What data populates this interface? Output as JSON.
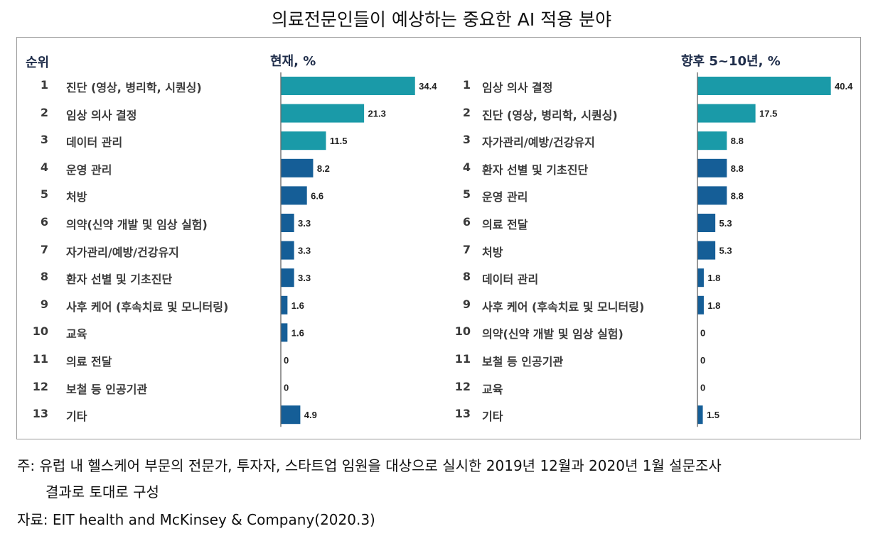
{
  "title": "의료전문인들이 예상하는 중요한 AI 적용 분야",
  "rank_header": "순위",
  "colors": {
    "top3": "#1a9aa8",
    "rest": "#155e97"
  },
  "chart_data": [
    {
      "type": "bar",
      "orientation": "horizontal",
      "title": "현재, %",
      "ranks": [
        "1",
        "2",
        "3",
        "4",
        "5",
        "6",
        "7",
        "8",
        "9",
        "10",
        "11",
        "12",
        "13"
      ],
      "categories": [
        "진단 (영상, 병리학, 시퀀싱)",
        "임상 의사 결정",
        "데이터 관리",
        "운영 관리",
        "처방",
        "의약(신약 개발 및 임상 실험)",
        "자가관리/예방/건강유지",
        "환자 선별 및 기초진단",
        "사후 케어 (후속치료 및 모니터링)",
        "교육",
        "의료 전달",
        "보철 등 인공기관",
        "기타"
      ],
      "values": [
        34.4,
        21.3,
        11.5,
        8.2,
        6.6,
        3.3,
        3.3,
        3.3,
        1.6,
        1.6,
        0,
        0,
        4.9
      ],
      "value_labels": [
        "34.4",
        "21.3",
        "11.5",
        "8.2",
        "6.6",
        "3.3",
        "3.3",
        "3.3",
        "1.6",
        "1.6",
        "0",
        "0",
        "4.9"
      ],
      "highlight_top": 3
    },
    {
      "type": "bar",
      "orientation": "horizontal",
      "title": "향후 5~10년, %",
      "ranks": [
        "1",
        "2",
        "3",
        "4",
        "5",
        "6",
        "7",
        "8",
        "9",
        "10",
        "11",
        "12",
        "13"
      ],
      "categories": [
        "임상 의사 결정",
        "진단 (영상, 병리학, 시퀀싱)",
        "자가관리/예방/건강유지",
        "환자 선별 및 기초진단",
        "운영 관리",
        "의료 전달",
        "처방",
        "데이터 관리",
        "사후 케어 (후속치료 및 모니터링)",
        "의약(신약 개발 및 임상 실험)",
        "보철 등 인공기관",
        "교육",
        "기타"
      ],
      "values": [
        40.4,
        17.5,
        8.8,
        8.8,
        8.8,
        5.3,
        5.3,
        1.8,
        1.8,
        0,
        0,
        0,
        1.5
      ],
      "value_labels": [
        "40.4",
        "17.5",
        "8.8",
        "8.8",
        "8.8",
        "5.3",
        "5.3",
        "1.8",
        "1.8",
        "0",
        "0",
        "0",
        "1.5"
      ],
      "highlight_top": 3
    }
  ],
  "notes": {
    "line1": "주: 유럽 내 헬스케어 부문의 전문가, 투자자, 스타트업 임원을 대상으로 실시한 2019년 12월과 2020년 1월 설문조사",
    "line2": "결과로 토대로 구성",
    "source": "자료: EIT health and McKinsey & Company(2020.3)"
  }
}
